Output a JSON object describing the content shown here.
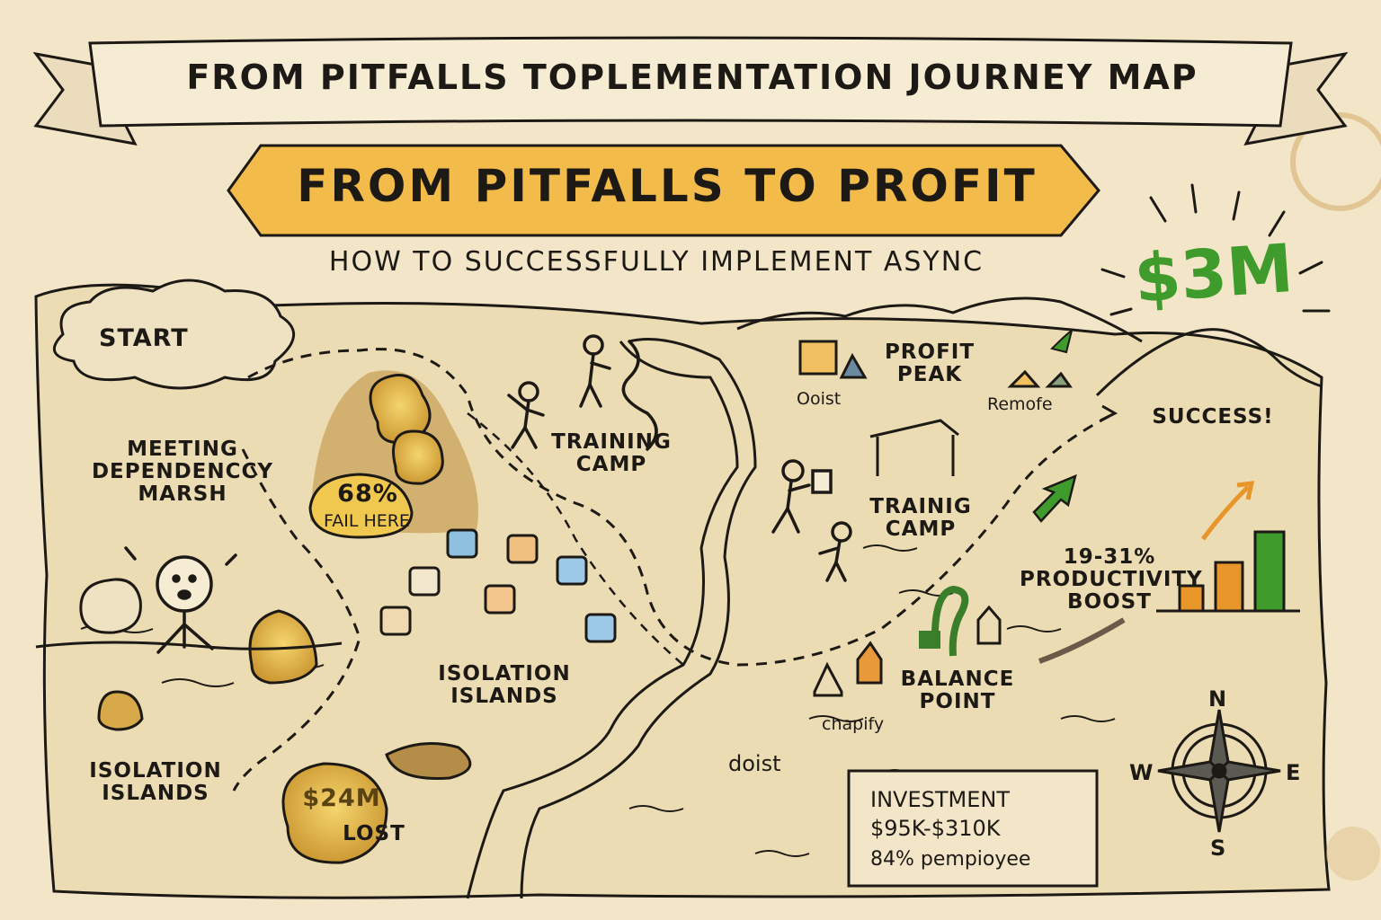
{
  "header": {
    "banner_title": "FROM PITFALLS TOPLEMENTATION JOURNEY MAP",
    "headline": "FROM PITFALLS TO PROFIT",
    "subtitle": "HOW TO SUCCESSFULLY IMPLEMENT ASYNC",
    "big_amount": "$3M"
  },
  "colors": {
    "parchment": "#f3e6c8",
    "ink": "#1d1a16",
    "headline_banner": "#f2bb4a",
    "money_green": "#3f9b2c",
    "coin_gold": "#e8b640",
    "bar_orange": "#e8962a"
  },
  "regions": {
    "start": "START",
    "meeting_marsh": "MEETING\nDEPENDENCCY\nMARSH",
    "fail_percent": "68%",
    "fail_label": "FAIL HERE",
    "training_camp_1": "TRAINING\nCAMP",
    "training_camp_2": "TRAINIG\nCAMP",
    "profit_peak": "PROFIT\nPEAK",
    "success": "SUCCESS!",
    "isolation_islands_1": "ISOLATION\nISLANDS",
    "isolation_islands_2": "ISOLATION\nISLANDS",
    "lost_amount": "$24M",
    "lost_label": "LOST",
    "balance_point": "BALANCE\nPOINT",
    "productivity_boost": "19-31%\nPRODUCTIVITY\nBOOST"
  },
  "brands": {
    "ooist": "Ooist",
    "remote": "Remofe",
    "chapify": "chapify",
    "doist": "doist"
  },
  "legend": {
    "title": "INVESTMENT",
    "range": "$95K-$310K",
    "per_employee": "84% pempioyee"
  },
  "compass": {
    "n": "N",
    "s": "S",
    "e": "E",
    "w": "W"
  },
  "icons": {
    "coin_bag": "money-bag-icon",
    "app_tiles": "app-tile-icon",
    "compass": "compass-rose-icon",
    "growth_arrow": "trend-arrow-icon"
  }
}
